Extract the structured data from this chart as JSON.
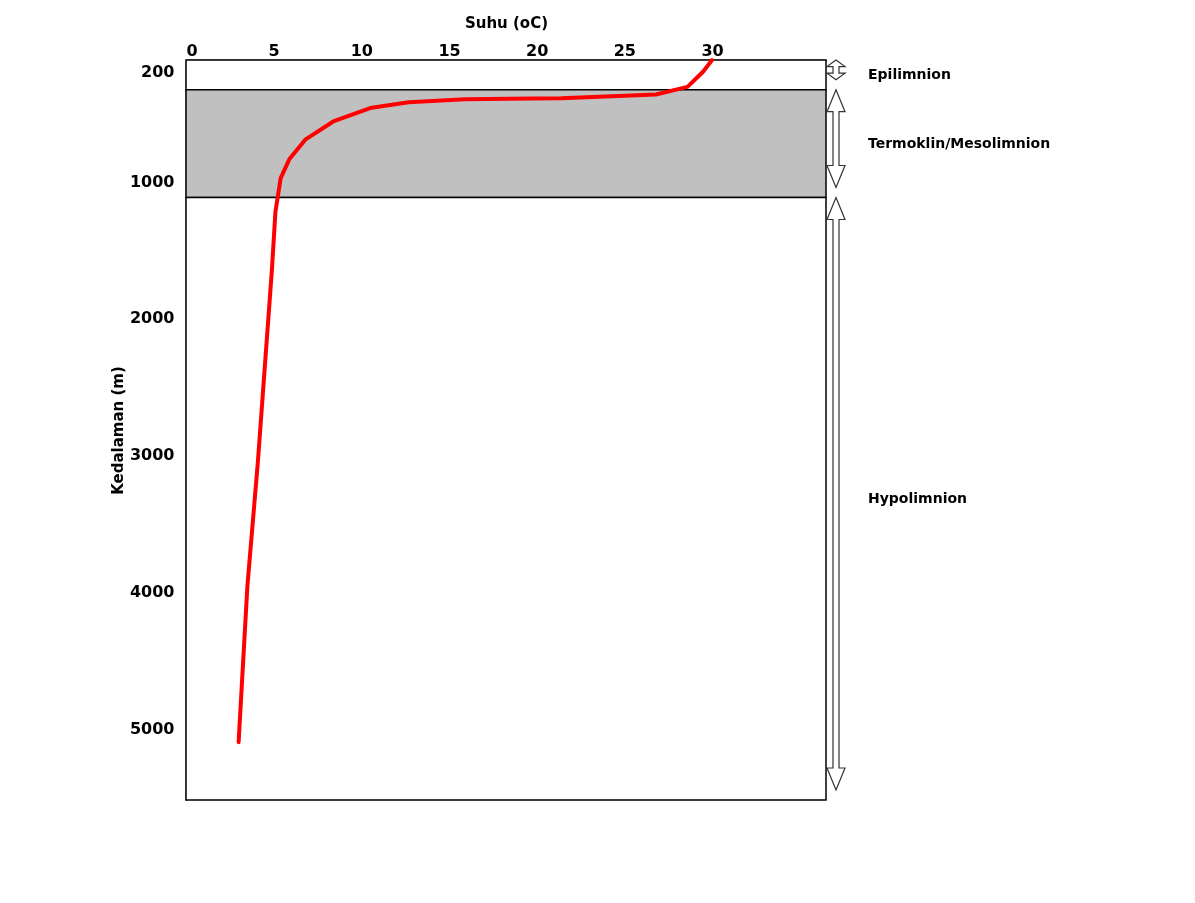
{
  "chart_data": {
    "type": "line",
    "xlabel": "Suhu (oC)",
    "ylabel": "Kedalaman (m)",
    "x": [
      30,
      29.5,
      28.6,
      26.8,
      21.4,
      15.9,
      12.7,
      10.5,
      8.4,
      6.8,
      5.9,
      5.4,
      5.1,
      4.9,
      4.5,
      4.1,
      3.5,
      3.0
    ],
    "series": [
      {
        "color": "#ff0000",
        "values": [
          116,
          200,
          312,
          368,
          396,
          403,
          425,
          467,
          565,
          698,
          839,
          979,
          1225,
          1646,
          2347,
          3049,
          3961,
          5098
        ]
      }
    ],
    "xlim": [
      0,
      36.5
    ],
    "xticks": [
      0,
      5,
      10,
      15,
      20,
      25,
      30
    ],
    "ylim": [
      5520,
      116
    ],
    "yticks": [
      200,
      1000,
      2000,
      3000,
      4000,
      5000
    ],
    "bands": [
      {
        "axis": "y",
        "from": 116,
        "to": 333,
        "label": "Epilimnion",
        "color": "#ffffff"
      },
      {
        "axis": "y",
        "from": 333,
        "to": 1120,
        "label": "Termoklin/Mesolimnion",
        "color": "#c0c0c0"
      },
      {
        "axis": "y",
        "from": 1120,
        "to": 5520,
        "label": "Hypolimnion",
        "color": "#ffffff"
      }
    ],
    "marker": "none",
    "line_style": "solid"
  }
}
